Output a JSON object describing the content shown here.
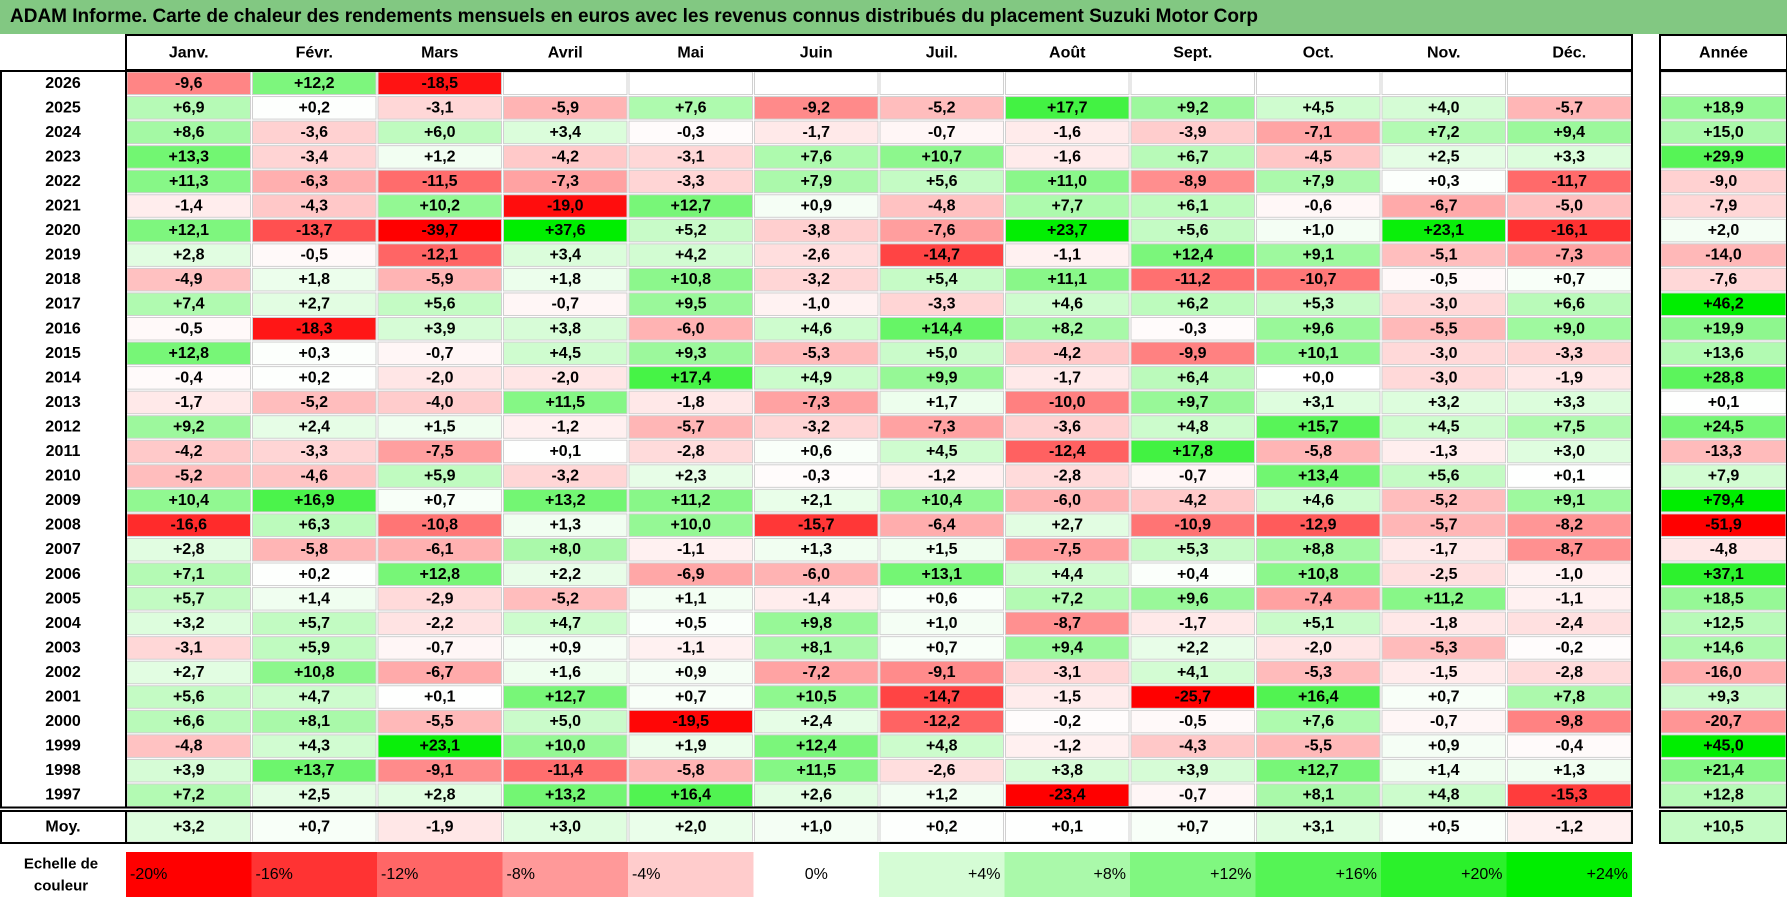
{
  "title": "ADAM Informe. Carte de chaleur des rendements mensuels en euros avec les revenus connus distribués du placement Suzuki Motor Corp",
  "colors": {
    "title_bg": "#82c882",
    "max_red": "#ff0000",
    "max_green": "#00ee00",
    "neutral": "#ffffff"
  },
  "chart_data": {
    "type": "heatmap",
    "months": [
      "Janv.",
      "Févr.",
      "Mars",
      "Avril",
      "Mai",
      "Juin",
      "Juil.",
      "Août",
      "Sept.",
      "Oct.",
      "Nov.",
      "Déc."
    ],
    "year_header": "Année",
    "avg_label": "Moy.",
    "scale_label_line1": "Echelle de",
    "scale_label_line2": "couleur",
    "rows": [
      {
        "year": "2026",
        "values": [
          "-9,6",
          "+12,2",
          "-18,5",
          "",
          "",
          "",
          "",
          "",
          "",
          "",
          "",
          ""
        ],
        "annual": ""
      },
      {
        "year": "2025",
        "values": [
          "+6,9",
          "+0,2",
          "-3,1",
          "-5,9",
          "+7,6",
          "-9,2",
          "-5,2",
          "+17,7",
          "+9,2",
          "+4,5",
          "+4,0",
          "-5,7"
        ],
        "annual": "+18,9"
      },
      {
        "year": "2024",
        "values": [
          "+8,6",
          "-3,6",
          "+6,0",
          "+3,4",
          "-0,3",
          "-1,7",
          "-0,7",
          "-1,6",
          "-3,9",
          "-7,1",
          "+7,2",
          "+9,4"
        ],
        "annual": "+15,0"
      },
      {
        "year": "2023",
        "values": [
          "+13,3",
          "-3,4",
          "+1,2",
          "-4,2",
          "-3,1",
          "+7,6",
          "+10,7",
          "-1,6",
          "+6,7",
          "-4,5",
          "+2,5",
          "+3,3"
        ],
        "annual": "+29,9"
      },
      {
        "year": "2022",
        "values": [
          "+11,3",
          "-6,3",
          "-11,5",
          "-7,3",
          "-3,3",
          "+7,9",
          "+5,6",
          "+11,0",
          "-8,9",
          "+7,9",
          "+0,3",
          "-11,7"
        ],
        "annual": "-9,0"
      },
      {
        "year": "2021",
        "values": [
          "-1,4",
          "-4,3",
          "+10,2",
          "-19,0",
          "+12,7",
          "+0,9",
          "-4,8",
          "+7,7",
          "+6,1",
          "-0,6",
          "-6,7",
          "-5,0"
        ],
        "annual": "-7,9"
      },
      {
        "year": "2020",
        "values": [
          "+12,1",
          "-13,7",
          "-39,7",
          "+37,6",
          "+5,2",
          "-3,8",
          "-7,6",
          "+23,7",
          "+5,6",
          "+1,0",
          "+23,1",
          "-16,1"
        ],
        "annual": "+2,0"
      },
      {
        "year": "2019",
        "values": [
          "+2,8",
          "-0,5",
          "-12,1",
          "+3,4",
          "+4,2",
          "-2,6",
          "-14,7",
          "-1,1",
          "+12,4",
          "+9,1",
          "-5,1",
          "-7,3"
        ],
        "annual": "-14,0"
      },
      {
        "year": "2018",
        "values": [
          "-4,9",
          "+1,8",
          "-5,9",
          "+1,8",
          "+10,8",
          "-3,2",
          "+5,4",
          "+11,1",
          "-11,2",
          "-10,7",
          "-0,5",
          "+0,7"
        ],
        "annual": "-7,6"
      },
      {
        "year": "2017",
        "values": [
          "+7,4",
          "+2,7",
          "+5,6",
          "-0,7",
          "+9,5",
          "-1,0",
          "-3,3",
          "+4,6",
          "+6,2",
          "+5,3",
          "-3,0",
          "+6,6"
        ],
        "annual": "+46,2"
      },
      {
        "year": "2016",
        "values": [
          "-0,5",
          "-18,3",
          "+3,9",
          "+3,8",
          "-6,0",
          "+4,6",
          "+14,4",
          "+8,2",
          "-0,3",
          "+9,6",
          "-5,5",
          "+9,0"
        ],
        "annual": "+19,9"
      },
      {
        "year": "2015",
        "values": [
          "+12,8",
          "+0,3",
          "-0,7",
          "+4,5",
          "+9,3",
          "-5,3",
          "+5,0",
          "-4,2",
          "-9,9",
          "+10,1",
          "-3,0",
          "-3,3"
        ],
        "annual": "+13,6"
      },
      {
        "year": "2014",
        "values": [
          "-0,4",
          "+0,2",
          "-2,0",
          "-2,0",
          "+17,4",
          "+4,9",
          "+9,9",
          "-1,7",
          "+6,4",
          "+0,0",
          "-3,0",
          "-1,9"
        ],
        "annual": "+28,8"
      },
      {
        "year": "2013",
        "values": [
          "-1,7",
          "-5,2",
          "-4,0",
          "+11,5",
          "-1,8",
          "-7,3",
          "+1,7",
          "-10,0",
          "+9,7",
          "+3,1",
          "+3,2",
          "+3,3"
        ],
        "annual": "+0,1"
      },
      {
        "year": "2012",
        "values": [
          "+9,2",
          "+2,4",
          "+1,5",
          "-1,2",
          "-5,7",
          "-3,2",
          "-7,3",
          "-3,6",
          "+4,8",
          "+15,7",
          "+4,5",
          "+7,5"
        ],
        "annual": "+24,5"
      },
      {
        "year": "2011",
        "values": [
          "-4,2",
          "-3,3",
          "-7,5",
          "+0,1",
          "-2,8",
          "+0,6",
          "+4,5",
          "-12,4",
          "+17,8",
          "-5,8",
          "-1,3",
          "+3,0"
        ],
        "annual": "-13,3"
      },
      {
        "year": "2010",
        "values": [
          "-5,2",
          "-4,6",
          "+5,9",
          "-3,2",
          "+2,3",
          "-0,3",
          "-1,2",
          "-2,8",
          "-0,7",
          "+13,4",
          "+5,6",
          "+0,1"
        ],
        "annual": "+7,9"
      },
      {
        "year": "2009",
        "values": [
          "+10,4",
          "+16,9",
          "+0,7",
          "+13,2",
          "+11,2",
          "+2,1",
          "+10,4",
          "-6,0",
          "-4,2",
          "+4,6",
          "-5,2",
          "+9,1"
        ],
        "annual": "+79,4"
      },
      {
        "year": "2008",
        "values": [
          "-16,6",
          "+6,3",
          "-10,8",
          "+1,3",
          "+10,0",
          "-15,7",
          "-6,4",
          "+2,7",
          "-10,9",
          "-12,9",
          "-5,7",
          "-8,2"
        ],
        "annual": "-51,9"
      },
      {
        "year": "2007",
        "values": [
          "+2,8",
          "-5,8",
          "-6,1",
          "+8,0",
          "-1,1",
          "+1,3",
          "+1,5",
          "-7,5",
          "+5,3",
          "+8,8",
          "-1,7",
          "-8,7"
        ],
        "annual": "-4,8"
      },
      {
        "year": "2006",
        "values": [
          "+7,1",
          "+0,2",
          "+12,8",
          "+2,2",
          "-6,9",
          "-6,0",
          "+13,1",
          "+4,4",
          "+0,4",
          "+10,8",
          "-2,5",
          "-1,0"
        ],
        "annual": "+37,1"
      },
      {
        "year": "2005",
        "values": [
          "+5,7",
          "+1,4",
          "-2,9",
          "-5,2",
          "+1,1",
          "-1,4",
          "+0,6",
          "+7,2",
          "+9,6",
          "-7,4",
          "+11,2",
          "-1,1"
        ],
        "annual": "+18,5"
      },
      {
        "year": "2004",
        "values": [
          "+3,2",
          "+5,7",
          "-2,2",
          "+4,7",
          "+0,5",
          "+9,8",
          "+1,0",
          "-8,7",
          "-1,7",
          "+5,1",
          "-1,8",
          "-2,4"
        ],
        "annual": "+12,5"
      },
      {
        "year": "2003",
        "values": [
          "-3,1",
          "+5,9",
          "-0,7",
          "+0,9",
          "-1,1",
          "+8,1",
          "+0,7",
          "+9,4",
          "+2,2",
          "-2,0",
          "-5,3",
          "-0,2"
        ],
        "annual": "+14,6"
      },
      {
        "year": "2002",
        "values": [
          "+2,7",
          "+10,8",
          "-6,7",
          "+1,6",
          "+0,9",
          "-7,2",
          "-9,1",
          "-3,1",
          "+4,1",
          "-5,3",
          "-1,5",
          "-2,8"
        ],
        "annual": "-16,0"
      },
      {
        "year": "2001",
        "values": [
          "+5,6",
          "+4,7",
          "+0,1",
          "+12,7",
          "+0,7",
          "+10,5",
          "-14,7",
          "-1,5",
          "-25,7",
          "+16,4",
          "+0,7",
          "+7,8"
        ],
        "annual": "+9,3"
      },
      {
        "year": "2000",
        "values": [
          "+6,6",
          "+8,1",
          "-5,5",
          "+5,0",
          "-19,5",
          "+2,4",
          "-12,2",
          "-0,2",
          "-0,5",
          "+7,6",
          "-0,7",
          "-9,8"
        ],
        "annual": "-20,7"
      },
      {
        "year": "1999",
        "values": [
          "-4,8",
          "+4,3",
          "+23,1",
          "+10,0",
          "+1,9",
          "+12,4",
          "+4,8",
          "-1,2",
          "-4,3",
          "-5,5",
          "+0,9",
          "-0,4"
        ],
        "annual": "+45,0"
      },
      {
        "year": "1998",
        "values": [
          "+3,9",
          "+13,7",
          "-9,1",
          "-11,4",
          "-5,8",
          "+11,5",
          "-2,6",
          "+3,8",
          "+3,9",
          "+12,7",
          "+1,4",
          "+1,3"
        ],
        "annual": "+21,4"
      },
      {
        "year": "1997",
        "values": [
          "+7,2",
          "+2,5",
          "+2,8",
          "+13,2",
          "+16,4",
          "+2,6",
          "+1,2",
          "-23,4",
          "-0,7",
          "+8,1",
          "+4,8",
          "-15,3"
        ],
        "annual": "+12,8"
      }
    ],
    "averages": [
      "+3,2",
      "+0,7",
      "-1,9",
      "+3,0",
      "+2,0",
      "+1,0",
      "+0,2",
      "+0,1",
      "+0,7",
      "+3,1",
      "+0,5",
      "-1,2"
    ],
    "average_annual": "+10,5",
    "scale": [
      "-20%",
      "-16%",
      "-12%",
      "-8%",
      "-4%",
      "0%",
      "+4%",
      "+8%",
      "+12%",
      "+16%",
      "+20%",
      "+24%"
    ]
  }
}
